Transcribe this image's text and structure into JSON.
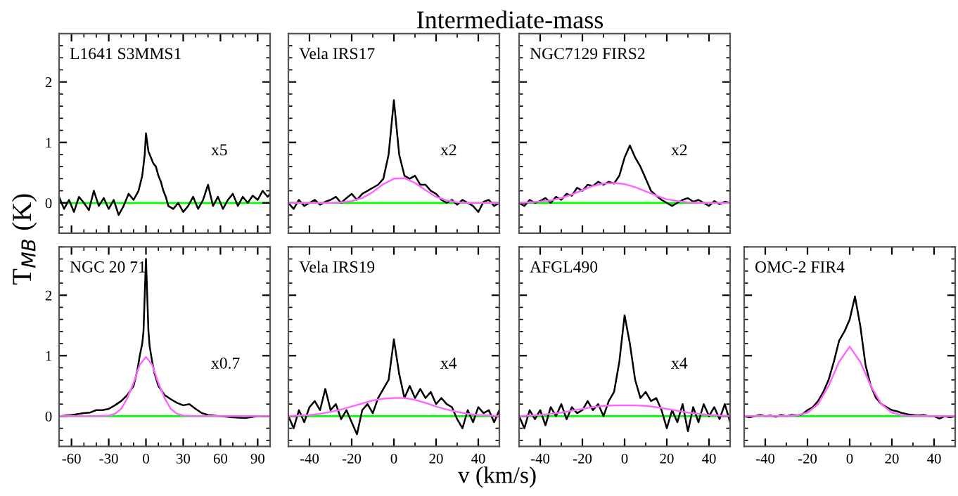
{
  "chart_data": [
    {
      "type": "line",
      "xlim": [
        -70,
        100
      ],
      "ylim": [
        -0.5,
        2.8
      ],
      "xticks": [
        -60,
        -30,
        0,
        30,
        60,
        90
      ],
      "yticks": [
        0,
        1,
        2
      ],
      "tick_labels": "y",
      "annotations": [
        "L1641 S3MMS1",
        "x5"
      ],
      "ref_lines": [
        {
          "axis": "y",
          "value": 0,
          "color": "#00ff00"
        }
      ],
      "series": [
        {
          "color": "#000000",
          "x": [
            -70,
            -66,
            -62,
            -58,
            -54,
            -50,
            -46,
            -42,
            -38,
            -34,
            -30,
            -26,
            -22,
            -18,
            -14,
            -10,
            -6,
            -3,
            -1,
            0,
            2,
            4,
            6,
            8,
            10,
            12,
            14,
            16,
            18,
            22,
            26,
            30,
            34,
            38,
            42,
            46,
            50,
            54,
            58,
            62,
            66,
            70,
            74,
            78,
            82,
            86,
            90,
            94,
            98,
            100
          ],
          "values": [
            0.1,
            -0.1,
            0.05,
            -0.15,
            0.1,
            0.0,
            -0.12,
            0.2,
            -0.05,
            0.08,
            -0.1,
            0.05,
            -0.2,
            -0.05,
            0.15,
            0.05,
            0.2,
            0.45,
            0.8,
            1.15,
            0.85,
            0.75,
            0.65,
            0.6,
            0.45,
            0.35,
            0.2,
            0.1,
            -0.05,
            -0.1,
            0.0,
            -0.15,
            -0.05,
            0.1,
            -0.1,
            0.05,
            0.3,
            -0.05,
            0.1,
            -0.1,
            0.05,
            0.15,
            -0.05,
            0.1,
            0.0,
            0.12,
            0.05,
            0.2,
            0.1,
            0.15
          ]
        }
      ]
    },
    {
      "type": "line",
      "title": "Intermediate-mass",
      "xlim": [
        -50,
        50
      ],
      "ylim": [
        -0.5,
        2.8
      ],
      "xticks": [
        -40,
        -20,
        0,
        20,
        40
      ],
      "yticks": [
        0,
        1,
        2
      ],
      "tick_labels": false,
      "annotations": [
        "Vela IRS17",
        "x2"
      ],
      "ref_lines": [
        {
          "axis": "y",
          "value": 0,
          "color": "#00ff00"
        }
      ],
      "series": [
        {
          "color": "#000000",
          "x": [
            -50,
            -47.5,
            -45,
            -42.5,
            -40,
            -37.5,
            -35,
            -32.5,
            -30,
            -27.5,
            -25,
            -22.5,
            -20,
            -17.5,
            -15,
            -12.5,
            -10,
            -7.5,
            -5,
            -2.5,
            0,
            2.5,
            5,
            7.5,
            10,
            12.5,
            15,
            17.5,
            20,
            22.5,
            25,
            27.5,
            30,
            32.5,
            35,
            37.5,
            40,
            42.5,
            45,
            47.5,
            50
          ],
          "values": [
            0.0,
            -0.1,
            0.05,
            -0.05,
            0.0,
            0.05,
            -0.03,
            0.02,
            0.05,
            0.1,
            0.0,
            0.08,
            0.15,
            0.05,
            0.15,
            0.2,
            0.25,
            0.3,
            0.4,
            0.8,
            1.7,
            0.8,
            0.45,
            0.4,
            0.45,
            0.3,
            0.3,
            0.2,
            0.15,
            0.05,
            0.0,
            0.05,
            -0.03,
            0.05,
            0.0,
            -0.05,
            -0.15,
            0.02,
            0.05,
            -0.05,
            0.0
          ]
        },
        {
          "color": "#ff66ff",
          "x": [
            -50,
            -45,
            -40,
            -35,
            -30,
            -25,
            -20,
            -15,
            -10,
            -5,
            0,
            5,
            10,
            15,
            20,
            25,
            30,
            35,
            40,
            45,
            50
          ],
          "values": [
            0,
            0,
            0,
            0,
            0.0,
            0.01,
            0.03,
            0.08,
            0.18,
            0.31,
            0.4,
            0.41,
            0.33,
            0.21,
            0.1,
            0.04,
            0.01,
            0,
            0,
            0,
            0
          ]
        }
      ]
    },
    {
      "type": "line",
      "xlim": [
        -50,
        50
      ],
      "ylim": [
        -0.5,
        2.8
      ],
      "xticks": [
        -40,
        -20,
        0,
        20,
        40
      ],
      "yticks": [
        0,
        1,
        2
      ],
      "tick_labels": false,
      "annotations": [
        "NGC7129 FIRS2",
        "x2"
      ],
      "ref_lines": [
        {
          "axis": "y",
          "value": 0,
          "color": "#00ff00"
        }
      ],
      "series": [
        {
          "color": "#000000",
          "x": [
            -50,
            -47.5,
            -45,
            -42.5,
            -40,
            -37.5,
            -35,
            -32.5,
            -30,
            -27.5,
            -25,
            -22.5,
            -20,
            -17.5,
            -15,
            -12.5,
            -10,
            -7.5,
            -5,
            -2.5,
            0,
            2.5,
            5,
            7.5,
            10,
            12.5,
            15,
            17.5,
            20,
            22.5,
            25,
            27.5,
            30,
            32.5,
            35,
            37.5,
            40,
            42.5,
            45,
            47.5,
            50
          ],
          "values": [
            0.0,
            -0.05,
            0.05,
            0.0,
            0.03,
            0.08,
            0.0,
            0.1,
            0.05,
            0.15,
            0.12,
            0.25,
            0.2,
            0.3,
            0.28,
            0.35,
            0.3,
            0.35,
            0.32,
            0.45,
            0.75,
            0.95,
            0.75,
            0.6,
            0.4,
            0.2,
            0.12,
            0.05,
            0.0,
            -0.05,
            0.0,
            0.05,
            0.08,
            0.02,
            0.05,
            0.0,
            -0.05,
            0.03,
            -0.02,
            0.02,
            0.0
          ]
        },
        {
          "color": "#ff66ff",
          "x": [
            -50,
            -45,
            -40,
            -35,
            -30,
            -25,
            -20,
            -15,
            -10,
            -5,
            0,
            5,
            10,
            15,
            20,
            25,
            30,
            35,
            40,
            45,
            50
          ],
          "values": [
            0.0,
            0.01,
            0.02,
            0.04,
            0.08,
            0.14,
            0.21,
            0.28,
            0.32,
            0.33,
            0.31,
            0.26,
            0.19,
            0.12,
            0.06,
            0.03,
            0.01,
            0.0,
            0.0,
            0.0,
            0.0
          ]
        }
      ]
    },
    {
      "type": "line",
      "ylabel": "T$_{MB}$ (K)",
      "xlim": [
        -70,
        100
      ],
      "ylim": [
        -0.5,
        2.8
      ],
      "xticks": [
        -60,
        -30,
        0,
        30,
        60,
        90
      ],
      "yticks": [
        0,
        1,
        2
      ],
      "annotations": [
        "NGC 20 71",
        "x0.7"
      ],
      "ref_lines": [
        {
          "axis": "y",
          "value": 0,
          "color": "#00ff00"
        }
      ],
      "series": [
        {
          "color": "#000000",
          "x": [
            -70,
            -60,
            -50,
            -45,
            -40,
            -35,
            -30,
            -25,
            -20,
            -15,
            -10,
            -7,
            -5,
            -3,
            -2,
            -1,
            0,
            1,
            2,
            3,
            5,
            7,
            10,
            15,
            20,
            25,
            30,
            35,
            40,
            45,
            50,
            60,
            70,
            80,
            90,
            100
          ],
          "values": [
            0.0,
            0.02,
            0.05,
            0.06,
            0.1,
            0.1,
            0.12,
            0.18,
            0.25,
            0.35,
            0.5,
            0.75,
            1.0,
            1.2,
            1.4,
            2.0,
            2.6,
            2.0,
            1.4,
            1.15,
            0.9,
            0.7,
            0.5,
            0.35,
            0.28,
            0.22,
            0.18,
            0.2,
            0.12,
            0.05,
            0.02,
            0.0,
            -0.02,
            -0.03,
            0.0,
            0.0
          ]
        },
        {
          "color": "#ff66ff",
          "x": [
            -70,
            -40,
            -30,
            -25,
            -20,
            -15,
            -10,
            -5,
            0,
            5,
            10,
            15,
            20,
            25,
            30,
            40,
            100
          ],
          "values": [
            0,
            0,
            0.01,
            0.04,
            0.12,
            0.3,
            0.55,
            0.85,
            0.98,
            0.85,
            0.55,
            0.3,
            0.12,
            0.04,
            0.01,
            0,
            0
          ]
        }
      ]
    },
    {
      "type": "line",
      "xlabel": "v (km/s)",
      "xlim": [
        -50,
        50
      ],
      "ylim": [
        -0.5,
        2.8
      ],
      "xticks": [
        -40,
        -20,
        0,
        20,
        40
      ],
      "yticks": [
        0,
        1,
        2
      ],
      "tick_labels": "x",
      "annotations": [
        "Vela IRS19",
        "x4"
      ],
      "ref_lines": [
        {
          "axis": "y",
          "value": 0,
          "color": "#00ff00"
        }
      ],
      "series": [
        {
          "color": "#000000",
          "x": [
            -50,
            -47.5,
            -45,
            -42.5,
            -40,
            -37.5,
            -35,
            -32.5,
            -30,
            -27.5,
            -25,
            -22.5,
            -20,
            -17.5,
            -15,
            -12.5,
            -10,
            -7.5,
            -5,
            -2.5,
            0,
            2.5,
            5,
            7.5,
            10,
            12.5,
            15,
            17.5,
            20,
            22.5,
            25,
            27.5,
            30,
            32.5,
            35,
            37.5,
            40,
            42.5,
            45,
            47.5,
            50
          ],
          "values": [
            0.0,
            -0.2,
            0.1,
            -0.1,
            0.15,
            0.25,
            0.1,
            0.45,
            0.1,
            0.2,
            -0.05,
            0.1,
            -0.1,
            -0.3,
            0.1,
            0.2,
            0.05,
            0.3,
            0.45,
            0.6,
            1.27,
            0.7,
            0.3,
            0.5,
            0.3,
            0.45,
            0.3,
            0.4,
            0.2,
            0.3,
            0.2,
            0.15,
            -0.05,
            -0.2,
            0.1,
            -0.1,
            0.15,
            0.05,
            0.1,
            -0.1,
            0.1
          ]
        },
        {
          "color": "#ff66ff",
          "x": [
            -50,
            -45,
            -40,
            -35,
            -30,
            -25,
            -20,
            -15,
            -10,
            -5,
            0,
            5,
            10,
            15,
            20,
            25,
            30,
            35,
            40,
            45,
            50
          ],
          "values": [
            0.0,
            0.01,
            0.02,
            0.04,
            0.07,
            0.11,
            0.16,
            0.21,
            0.26,
            0.29,
            0.3,
            0.3,
            0.27,
            0.22,
            0.16,
            0.11,
            0.07,
            0.04,
            0.02,
            0.01,
            0.0
          ]
        }
      ]
    },
    {
      "type": "line",
      "xlim": [
        -50,
        50
      ],
      "ylim": [
        -0.5,
        2.8
      ],
      "xticks": [
        -40,
        -20,
        0,
        20,
        40
      ],
      "yticks": [
        0,
        1,
        2
      ],
      "tick_labels": "x",
      "annotations": [
        "AFGL490",
        "x4"
      ],
      "ref_lines": [
        {
          "axis": "y",
          "value": 0,
          "color": "#00ff00"
        }
      ],
      "series": [
        {
          "color": "#000000",
          "x": [
            -50,
            -47.5,
            -45,
            -42.5,
            -40,
            -37.5,
            -35,
            -32.5,
            -30,
            -27.5,
            -25,
            -22.5,
            -20,
            -17.5,
            -15,
            -12.5,
            -10,
            -7.5,
            -5,
            -2.5,
            0,
            2.5,
            5,
            7.5,
            10,
            12.5,
            15,
            17.5,
            20,
            22.5,
            25,
            27.5,
            30,
            32.5,
            35,
            37.5,
            40,
            42.5,
            45,
            47.5,
            50
          ],
          "values": [
            0.0,
            -0.2,
            0.1,
            -0.05,
            0.1,
            -0.15,
            0.15,
            0.0,
            0.2,
            -0.05,
            0.15,
            0.05,
            0.1,
            0.25,
            0.1,
            0.2,
            0.0,
            0.25,
            0.4,
            0.9,
            1.67,
            1.2,
            0.6,
            0.3,
            0.4,
            0.25,
            0.3,
            0.1,
            -0.2,
            0.1,
            -0.1,
            0.2,
            -0.25,
            0.15,
            -0.1,
            0.2,
            0.0,
            0.15,
            -0.05,
            0.2,
            -0.1
          ]
        },
        {
          "color": "#ff66ff",
          "x": [
            -50,
            -45,
            -40,
            -35,
            -30,
            -25,
            -20,
            -15,
            -10,
            -5,
            0,
            5,
            10,
            15,
            20,
            25,
            30,
            35,
            40,
            45,
            50
          ],
          "values": [
            0.0,
            0.01,
            0.02,
            0.04,
            0.06,
            0.09,
            0.12,
            0.15,
            0.17,
            0.18,
            0.18,
            0.18,
            0.17,
            0.15,
            0.12,
            0.09,
            0.06,
            0.04,
            0.02,
            0.01,
            0.0
          ]
        }
      ]
    },
    {
      "type": "line",
      "xlim": [
        -50,
        50
      ],
      "ylim": [
        -0.5,
        2.8
      ],
      "xticks": [
        -40,
        -20,
        0,
        20,
        40
      ],
      "yticks": [
        0,
        1,
        2
      ],
      "tick_labels": "x",
      "annotations": [
        "OMC-2 FIR4"
      ],
      "ref_lines": [
        {
          "axis": "y",
          "value": 0,
          "color": "#00ff00"
        }
      ],
      "series": [
        {
          "color": "#000000",
          "x": [
            -50,
            -47.5,
            -45,
            -42.5,
            -40,
            -37.5,
            -35,
            -32.5,
            -30,
            -27.5,
            -25,
            -22.5,
            -20,
            -17.5,
            -15,
            -12.5,
            -10,
            -7.5,
            -5,
            -2.5,
            0,
            2.5,
            5,
            7.5,
            10,
            12.5,
            15,
            17.5,
            20,
            22.5,
            25,
            27.5,
            30,
            32.5,
            35,
            37.5,
            40,
            42.5,
            45,
            47.5,
            50
          ],
          "values": [
            0.0,
            -0.02,
            0.0,
            0.02,
            0.0,
            0.01,
            -0.01,
            0.02,
            0.0,
            0.02,
            0.01,
            0.03,
            0.1,
            0.15,
            0.25,
            0.4,
            0.6,
            0.9,
            1.25,
            1.4,
            1.6,
            1.98,
            1.5,
            0.85,
            0.5,
            0.3,
            0.2,
            0.15,
            0.1,
            0.08,
            0.05,
            0.03,
            0.02,
            0.01,
            0.02,
            0.0,
            0.0,
            -0.04,
            0.0,
            -0.02,
            0.0
          ]
        },
        {
          "color": "#ff66ff",
          "x": [
            -50,
            -40,
            -30,
            -25,
            -20,
            -15,
            -10,
            -5,
            0,
            5,
            10,
            15,
            20,
            25,
            30,
            40,
            50
          ],
          "values": [
            0,
            0,
            0,
            0.01,
            0.06,
            0.2,
            0.5,
            0.9,
            1.15,
            0.9,
            0.5,
            0.2,
            0.06,
            0.01,
            0,
            0,
            0
          ]
        }
      ]
    }
  ]
}
